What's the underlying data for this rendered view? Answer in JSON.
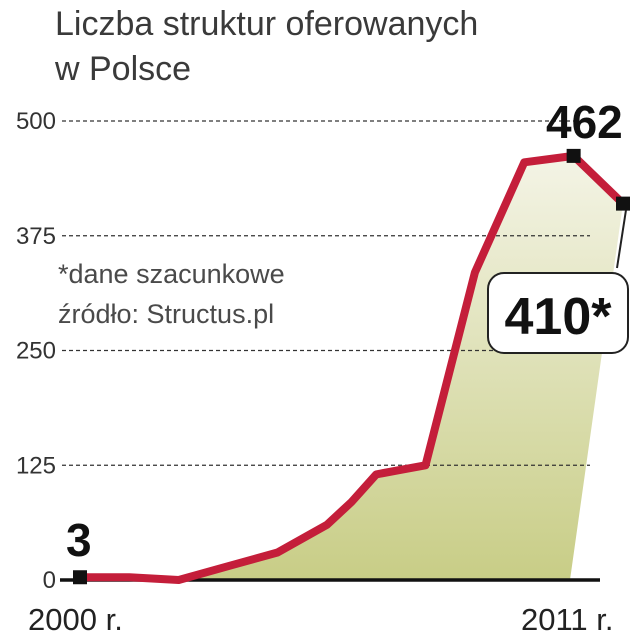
{
  "title_lines": [
    "Liczba struktur oferowanych",
    "w Polsce"
  ],
  "notes": [
    "*dane szacunkowe",
    "źródło: Structus.pl"
  ],
  "chart_data": {
    "type": "area",
    "title": "Liczba struktur oferowanych w Polsce",
    "x_start_label": "2000 r.",
    "x_end_label": "2011 r.",
    "yticks": [
      0,
      125,
      250,
      375,
      500
    ],
    "ylim": [
      0,
      500
    ],
    "xlim": [
      2000,
      2011
    ],
    "grid": true,
    "points": [
      {
        "x": 2000,
        "y": 3
      },
      {
        "x": 2000.5,
        "y": 3
      },
      {
        "x": 2001,
        "y": 3
      },
      {
        "x": 2002,
        "y": 0
      },
      {
        "x": 2003,
        "y": 15
      },
      {
        "x": 2004,
        "y": 30
      },
      {
        "x": 2005,
        "y": 60
      },
      {
        "x": 2005.5,
        "y": 85
      },
      {
        "x": 2006,
        "y": 115
      },
      {
        "x": 2006.5,
        "y": 120
      },
      {
        "x": 2007,
        "y": 125
      },
      {
        "x": 2007.5,
        "y": 230
      },
      {
        "x": 2008,
        "y": 335
      },
      {
        "x": 2009,
        "y": 455
      },
      {
        "x": 2010,
        "y": 462
      },
      {
        "x": 2011,
        "y": 410
      }
    ],
    "labels": {
      "start": "3",
      "peak": "462",
      "end": "410*"
    },
    "colors": {
      "line": "#c41e3a",
      "fill_top": "#f4f4e6",
      "fill_bottom": "#c8cd86",
      "grid": "#333333",
      "marker": "#111111"
    }
  }
}
